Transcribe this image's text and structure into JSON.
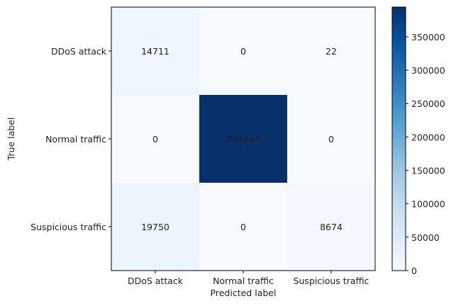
{
  "chart_data": {
    "type": "heatmap",
    "title": "",
    "xlabel": "Predicted label",
    "ylabel": "True label",
    "x_categories": [
      "DDoS attack",
      "Normal traffic",
      "Suspicious traffic"
    ],
    "y_categories": [
      "DDoS attack",
      "Normal traffic",
      "Suspicious traffic"
    ],
    "matrix": [
      [
        14711,
        0,
        22
      ],
      [
        0,
        394482,
        0
      ],
      [
        19750,
        0,
        8674
      ]
    ],
    "cell_labels": [
      [
        "14711",
        "0",
        "22"
      ],
      [
        "0",
        "394482",
        "0"
      ],
      [
        "19750",
        "0",
        "8674"
      ]
    ],
    "colormap": "Blues",
    "color_range": [
      0,
      394482
    ],
    "colorbar_ticks": [
      0,
      50000,
      100000,
      150000,
      200000,
      250000,
      300000,
      350000
    ],
    "colorbar_tick_labels": [
      "0",
      "50000",
      "100000",
      "150000",
      "200000",
      "250000",
      "300000",
      "350000"
    ],
    "grid": false
  }
}
